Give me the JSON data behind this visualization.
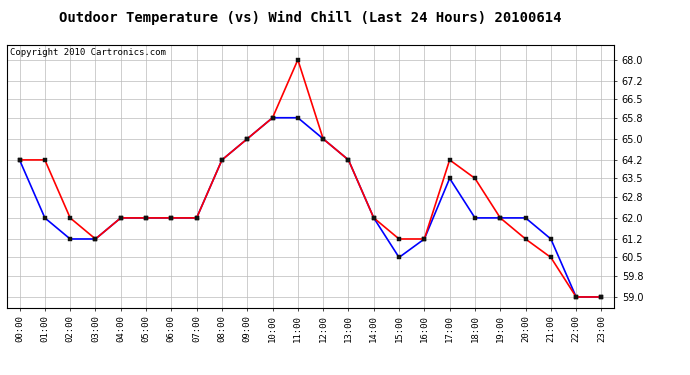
{
  "title": "Outdoor Temperature (vs) Wind Chill (Last 24 Hours) 20100614",
  "copyright_text": "Copyright 2010 Cartronics.com",
  "hours": [
    "00:00",
    "01:00",
    "02:00",
    "03:00",
    "04:00",
    "05:00",
    "06:00",
    "07:00",
    "08:00",
    "09:00",
    "10:00",
    "11:00",
    "12:00",
    "13:00",
    "14:00",
    "15:00",
    "16:00",
    "17:00",
    "18:00",
    "19:00",
    "20:00",
    "21:00",
    "22:00",
    "23:00"
  ],
  "temp": [
    64.2,
    64.2,
    62.0,
    61.2,
    62.0,
    62.0,
    62.0,
    62.0,
    64.2,
    65.0,
    65.8,
    68.0,
    65.0,
    64.2,
    62.0,
    61.2,
    61.2,
    64.2,
    63.5,
    62.0,
    61.2,
    60.5,
    59.0,
    59.0
  ],
  "windchill": [
    64.2,
    62.0,
    61.2,
    61.2,
    62.0,
    62.0,
    62.0,
    62.0,
    64.2,
    65.0,
    65.8,
    65.8,
    65.0,
    64.2,
    62.0,
    60.5,
    61.2,
    63.5,
    62.0,
    62.0,
    62.0,
    61.2,
    59.0,
    59.0
  ],
  "temp_color": "#ff0000",
  "windchill_color": "#0000ff",
  "marker": "s",
  "markersize": 3,
  "linewidth": 1.2,
  "ylim_min": 58.6,
  "ylim_max": 68.56,
  "yticks": [
    59.0,
    59.8,
    60.5,
    61.2,
    62.0,
    62.8,
    63.5,
    64.2,
    65.0,
    65.8,
    66.5,
    67.2,
    68.0
  ],
  "background_color": "#ffffff",
  "grid_color": "#bbbbbb",
  "title_fontsize": 10,
  "copyright_fontsize": 6.5,
  "fig_width": 6.9,
  "fig_height": 3.75,
  "fig_dpi": 100
}
